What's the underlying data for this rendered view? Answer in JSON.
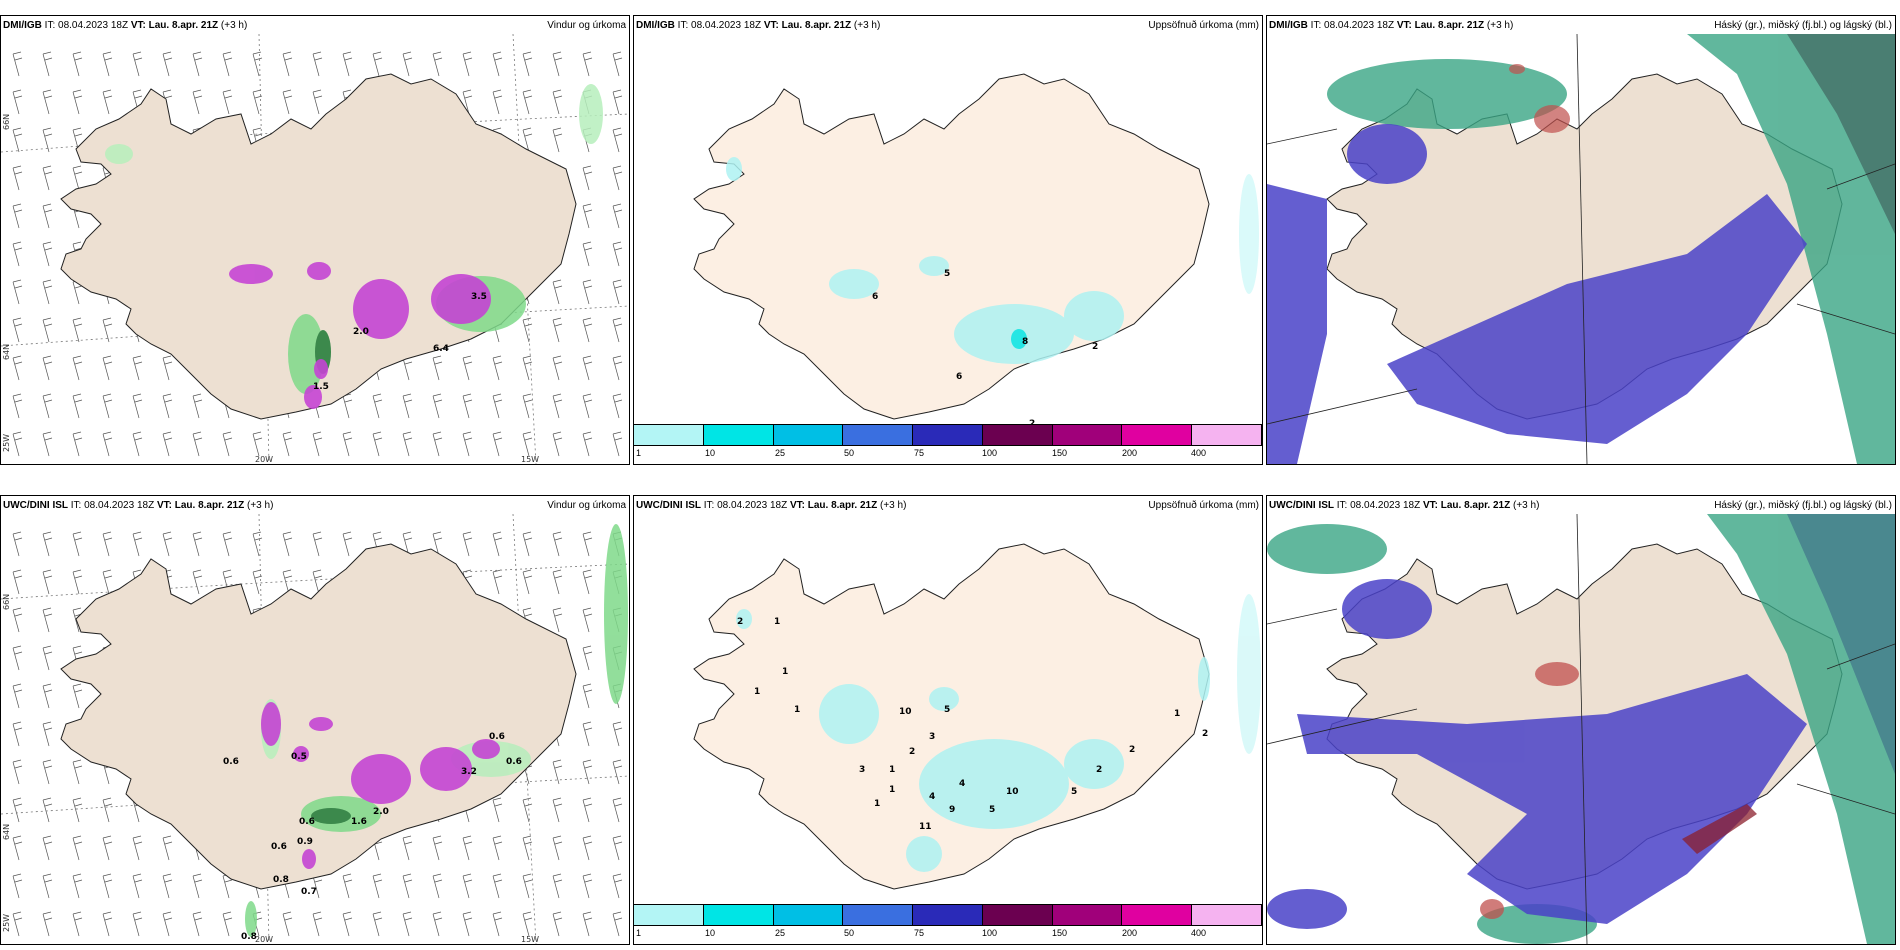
{
  "top": {
    "p1": {
      "model": "DMI/IGB",
      "it": "IT: 08.04.2023 18Z",
      "vt_label": "VT:",
      "vt": "Lau. 8.apr. 21Z",
      "lead": "(+3 h)",
      "product": "Vindur og úrkoma"
    },
    "p2": {
      "model": "DMI/IGB",
      "it": "IT: 08.04.2023 18Z",
      "vt_label": "VT:",
      "vt": "Lau. 8.apr. 21Z",
      "lead": "(+3 h)",
      "product": "Uppsöfnuð úrkoma (mm)"
    },
    "p3": {
      "model": "DMI/IGB",
      "it": "IT: 08.04.2023 18Z",
      "vt_label": "VT:",
      "vt": "Lau. 8.apr. 21Z",
      "lead": "(+3 h)",
      "product": "Háský (gr.), miðský (fj.bl.) og lágský (bl.)"
    }
  },
  "bottom": {
    "p1": {
      "model": "UWC/DINI ISL",
      "it": "IT: 08.04.2023 18Z",
      "vt_label": "VT:",
      "vt": "Lau. 8.apr. 21Z",
      "lead": "(+3 h)",
      "product": "Vindur og úrkoma"
    },
    "p2": {
      "model": "UWC/DINI ISL",
      "it": "IT: 08.04.2023 18Z",
      "vt_label": "VT:",
      "vt": "Lau. 8.apr. 21Z",
      "lead": "(+3 h)",
      "product": "Uppsöfnuð úrkoma (mm)"
    },
    "p3": {
      "model": "UWC/DINI ISL",
      "it": "IT: 08.04.2023 18Z",
      "vt_label": "VT:",
      "vt": "Lau. 8.apr. 21Z",
      "lead": "(+3 h)",
      "product": "Háský (gr.), miðský (fj.bl.) og lágský (bl.)"
    }
  },
  "axes": {
    "lat66": "66N",
    "lat64": "64N",
    "lon20": "20W",
    "lon15": "15W",
    "lon25": "25W"
  },
  "colorbar": {
    "ticks": [
      "1",
      "10",
      "25",
      "50",
      "75",
      "100",
      "150",
      "200",
      "400"
    ],
    "colors": [
      "#b3f5f5",
      "#00e5e5",
      "#00bfe5",
      "#3a6fe0",
      "#2a2ab8",
      "#6b0050",
      "#a0007a",
      "#e000a0",
      "#f5b3f0"
    ],
    "extra_label": "2"
  },
  "precip_labels_top": [
    "5",
    "8",
    "6",
    "2",
    "6",
    "2"
  ],
  "precip_labels_bottom": [
    "2",
    "1",
    "1",
    "1",
    "1",
    "10",
    "5",
    "3",
    "2",
    "3",
    "1",
    "1",
    "4",
    "4",
    "9",
    "5",
    "10",
    "11",
    "1",
    "5",
    "2",
    "2",
    "1",
    "2"
  ],
  "wind_labels_top": [
    "2.0",
    "6.4",
    "3.5",
    "1.5"
  ],
  "wind_labels_bottom": [
    "0.6",
    "0.6",
    "0.5",
    "0.6",
    "0.6",
    "0.9",
    "0.8",
    "0.7",
    "0.8",
    "1.6",
    "2.0",
    "3.2",
    "0.6"
  ],
  "colors": {
    "land": "#ede0d2",
    "land2": "#fcefe3",
    "green": "#7fd98a",
    "darkgreen": "#1e7a35",
    "magenta": "#c545d4",
    "cyan": "#aef2f2",
    "blue": "#4a42c8",
    "teal": "#3aa584",
    "red": "#c0504d"
  },
  "icons": {
    "wind": "wind-barb-icon"
  }
}
